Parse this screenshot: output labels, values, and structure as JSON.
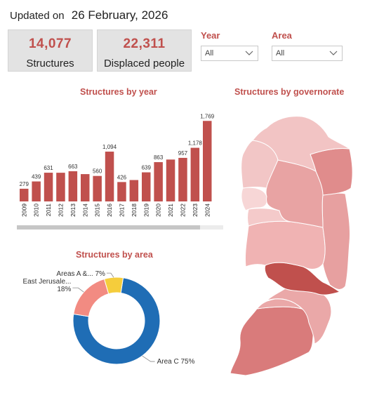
{
  "header": {
    "updated_label": "Updated on",
    "updated_date": "26 February, 2026"
  },
  "kpis": [
    {
      "value": "14,077",
      "label": "Structures"
    },
    {
      "value": "22,311",
      "label": "Displaced people"
    }
  ],
  "filters": [
    {
      "title": "Year",
      "value": "All"
    },
    {
      "title": "Area",
      "value": "All"
    }
  ],
  "charts": {
    "by_year_title": "Structures by year",
    "by_area_title": "Structures by area",
    "by_governorate_title": "Structures by governorate"
  },
  "colors": {
    "accent": "#c0504d",
    "bar": "#c0504d",
    "donut_c": "#1f6db5",
    "donut_ej": "#f28b82",
    "donut_ab": "#f5cd3c"
  },
  "chart_data": [
    {
      "type": "bar",
      "title": "Structures by year",
      "categories": [
        "2009",
        "2010",
        "2011",
        "2012",
        "2013",
        "2014",
        "2015",
        "2016",
        "2017",
        "2018",
        "2019",
        "2020",
        "2021",
        "2022",
        "2023",
        "2024"
      ],
      "values": [
        279,
        439,
        631,
        630,
        663,
        600,
        560,
        1094,
        426,
        470,
        639,
        863,
        920,
        957,
        1178,
        1769
      ],
      "data_labels": [
        "279",
        "439",
        "631",
        "",
        "663",
        "",
        "560",
        "1,094",
        "426",
        "",
        "639",
        "863",
        "",
        "957",
        "1,178",
        "1,769"
      ],
      "ylim": [
        0,
        1850
      ]
    },
    {
      "type": "pie",
      "title": "Structures by area",
      "labels": [
        "Area C",
        "East Jerusale...",
        "Areas A &..."
      ],
      "values": [
        75,
        18,
        7
      ],
      "value_labels": [
        "75%",
        "18%",
        "7%"
      ]
    }
  ],
  "map": {
    "regions": [
      {
        "name": "Jenin",
        "shade": "#f2c4c4"
      },
      {
        "name": "Tubas",
        "shade": "#e08c8c"
      },
      {
        "name": "Tulkarm",
        "shade": "#f2c6c6"
      },
      {
        "name": "Nablus",
        "shade": "#e8a3a3"
      },
      {
        "name": "Qalqiliya",
        "shade": "#f7d6d6"
      },
      {
        "name": "Salfit",
        "shade": "#f4caca"
      },
      {
        "name": "Jericho",
        "shade": "#e7a0a0"
      },
      {
        "name": "Ramallah",
        "shade": "#f0b3b3"
      },
      {
        "name": "Jerusalem",
        "shade": "#c0504d"
      },
      {
        "name": "Bethlehem",
        "shade": "#eaa8a8"
      },
      {
        "name": "Hebron",
        "shade": "#d97b7b"
      }
    ]
  }
}
